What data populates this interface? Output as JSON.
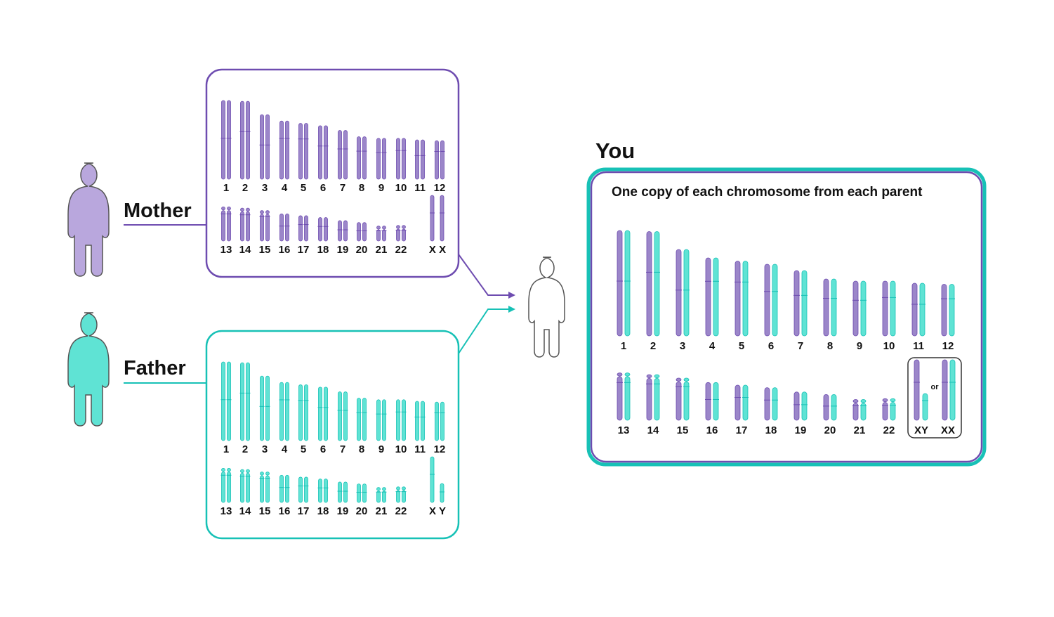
{
  "colors": {
    "mother": "#6e4cb0",
    "father": "#17c1b6",
    "mother_fill": "#9b86c9",
    "father_fill": "#5fe3d4",
    "outline": "#555555"
  },
  "labels": {
    "mother": "Mother",
    "father": "Father",
    "you": "You",
    "subtitle": "One copy of each chromosome from each parent",
    "or": "or",
    "mother_sex": "X X",
    "father_sex": "X Y",
    "you_xy": "XY",
    "you_xx": "XX"
  },
  "chromosomes": {
    "row1_numbers": [
      "1",
      "2",
      "3",
      "4",
      "5",
      "6",
      "7",
      "8",
      "9",
      "10",
      "11",
      "12"
    ],
    "row2_numbers": [
      "13",
      "14",
      "15",
      "16",
      "17",
      "18",
      "19",
      "20",
      "21",
      "22"
    ],
    "relative_lengths_row1": [
      1.0,
      0.99,
      0.82,
      0.74,
      0.71,
      0.68,
      0.62,
      0.54,
      0.52,
      0.52,
      0.5,
      0.49
    ],
    "relative_lengths_row2": [
      0.55,
      0.53,
      0.49,
      0.44,
      0.41,
      0.38,
      0.33,
      0.3,
      0.24,
      0.25
    ]
  },
  "icons": [
    "person-mother-icon",
    "person-father-icon",
    "person-child-icon",
    "arrow-right-icon"
  ]
}
